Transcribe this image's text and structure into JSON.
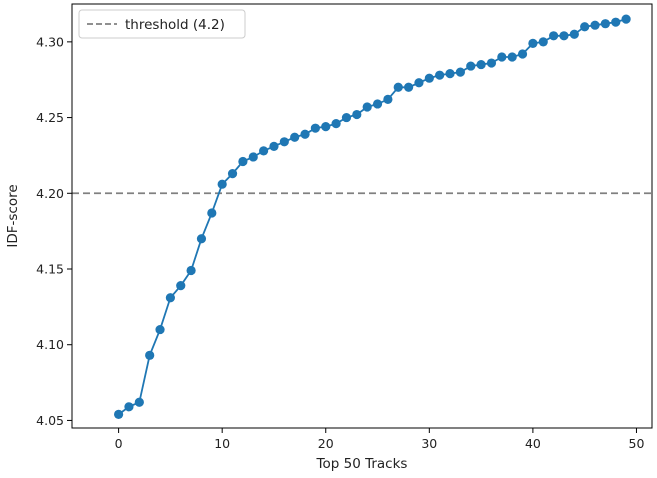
{
  "chart_data": {
    "type": "line",
    "title": "",
    "xlabel": "Top 50 Tracks",
    "ylabel": "IDF-score",
    "xlim": [
      -4.5,
      51.5
    ],
    "ylim": [
      4.045,
      4.325
    ],
    "xticks": [
      0,
      10,
      20,
      30,
      40,
      50
    ],
    "xtick_labels": [
      "0",
      "10",
      "20",
      "30",
      "40",
      "50"
    ],
    "yticks": [
      4.05,
      4.1,
      4.15,
      4.2,
      4.25,
      4.3
    ],
    "ytick_labels": [
      "4.05",
      "4.10",
      "4.15",
      "4.20",
      "4.25",
      "4.30"
    ],
    "grid": false,
    "legend": {
      "location": "top-left",
      "entries": [
        {
          "label": "threshold (4.2)",
          "style": "dashed",
          "color": "#808080"
        }
      ]
    },
    "series": [
      {
        "marker": "circle",
        "color": "#1f77b4",
        "x": [
          0,
          1,
          2,
          3,
          4,
          5,
          6,
          7,
          8,
          9,
          10,
          11,
          12,
          13,
          14,
          15,
          16,
          17,
          18,
          19,
          20,
          21,
          22,
          23,
          24,
          25,
          26,
          27,
          28,
          29,
          30,
          31,
          32,
          33,
          34,
          35,
          36,
          37,
          38,
          39,
          40,
          41,
          42,
          43,
          44,
          45,
          46,
          47,
          48,
          49
        ],
        "values": [
          4.054,
          4.059,
          4.062,
          4.093,
          4.11,
          4.131,
          4.139,
          4.149,
          4.17,
          4.187,
          4.206,
          4.213,
          4.221,
          4.224,
          4.228,
          4.231,
          4.234,
          4.237,
          4.239,
          4.243,
          4.244,
          4.246,
          4.25,
          4.252,
          4.257,
          4.259,
          4.262,
          4.27,
          4.27,
          4.273,
          4.276,
          4.278,
          4.279,
          4.28,
          4.284,
          4.285,
          4.286,
          4.29,
          4.29,
          4.292,
          4.299,
          4.3,
          4.304,
          4.304,
          4.305,
          4.31,
          4.311,
          4.312,
          4.313,
          4.315
        ]
      }
    ],
    "threshold": {
      "value": 4.2,
      "color": "#808080",
      "style": "dashed"
    }
  }
}
